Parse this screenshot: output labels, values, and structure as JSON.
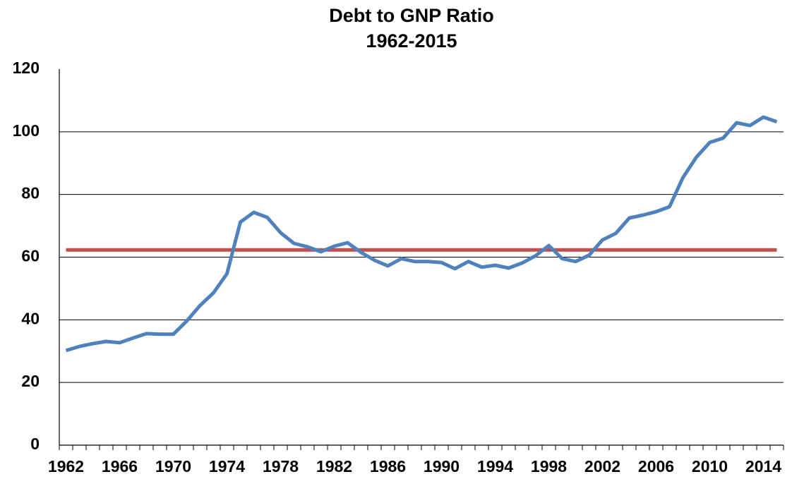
{
  "chart_data": {
    "type": "line",
    "title": "Debt to GNP Ratio",
    "subtitle": "1962-2015",
    "categories": [
      "1962",
      null,
      null,
      null,
      "1966",
      null,
      null,
      null,
      "1970",
      null,
      null,
      null,
      "1974",
      null,
      null,
      null,
      "1978",
      null,
      null,
      null,
      "1982",
      null,
      null,
      null,
      "1986",
      null,
      null,
      null,
      "1990",
      null,
      null,
      null,
      "1994",
      null,
      null,
      null,
      "1998",
      null,
      null,
      null,
      "2002",
      null,
      null,
      null,
      "2006",
      null,
      null,
      null,
      "2010",
      null,
      null,
      null,
      "2014",
      null
    ],
    "series": [
      {
        "color": "#4f81bd",
        "values": [
          30.2,
          31.5,
          32.4,
          33.1,
          32.7,
          34.2,
          35.6,
          35.4,
          35.4,
          39.6,
          44.6,
          48.6,
          54.7,
          71.2,
          74.3,
          72.7,
          67.8,
          64.4,
          63.3,
          61.7,
          63.5,
          64.6,
          61.5,
          59.0,
          57.2,
          59.5,
          58.6,
          58.6,
          58.3,
          56.3,
          58.6,
          56.8,
          57.4,
          56.5,
          58.1,
          60.4,
          63.7,
          59.5,
          58.6,
          60.6,
          65.5,
          67.6,
          72.5,
          73.4,
          74.5,
          76.1,
          85.4,
          91.9,
          96.6,
          98.0,
          102.9,
          102.0,
          104.7,
          103.2
        ]
      },
      {
        "color": "#c0504d",
        "values": [
          62.3,
          62.3,
          62.3,
          62.3,
          62.3,
          62.3,
          62.3,
          62.3,
          62.3,
          62.3,
          62.3,
          62.3,
          62.3,
          62.3,
          62.3,
          62.3,
          62.3,
          62.3,
          62.3,
          62.3,
          62.3,
          62.3,
          62.3,
          62.3,
          62.3,
          62.3,
          62.3,
          62.3,
          62.3,
          62.3,
          62.3,
          62.3,
          62.3,
          62.3,
          62.3,
          62.3,
          62.3,
          62.3,
          62.3,
          62.3,
          62.3,
          62.3,
          62.3,
          62.3,
          62.3,
          62.3,
          62.3,
          62.3,
          62.3,
          62.3,
          62.3,
          62.3,
          62.3,
          62.3
        ]
      }
    ],
    "ylim": [
      0,
      120
    ],
    "yticks": [
      0,
      20,
      40,
      60,
      80,
      100,
      120
    ],
    "grid": true
  }
}
